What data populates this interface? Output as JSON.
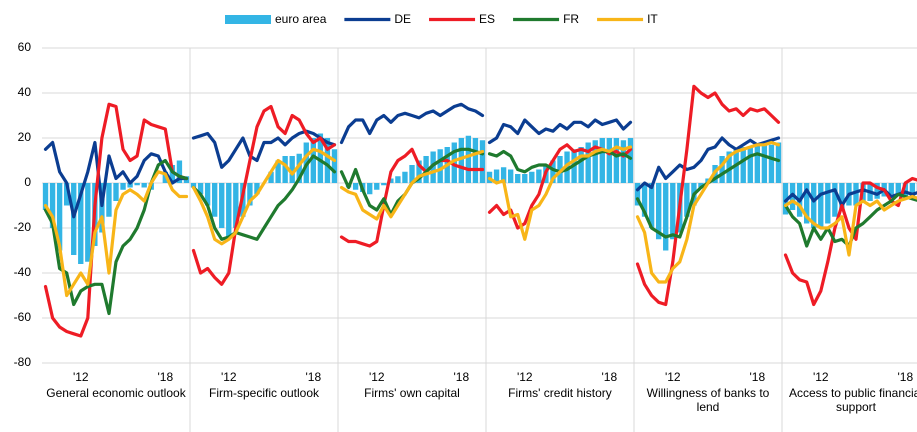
{
  "chart_data": {
    "type": "bar_line_panels",
    "ylim": [
      -80,
      60
    ],
    "yticks": [
      -80,
      -60,
      -40,
      -20,
      0,
      20,
      40,
      60
    ],
    "grid": true,
    "categories": [
      null,
      null,
      null,
      null,
      null,
      "'12",
      null,
      null,
      null,
      null,
      null,
      null,
      null,
      null,
      null,
      null,
      null,
      "'18",
      null,
      null,
      null
    ],
    "series": [
      {
        "name": "euro area",
        "color": "#33b5e5",
        "kind": "bar"
      },
      {
        "name": "DE",
        "color": "#0b3d91",
        "kind": "line"
      },
      {
        "name": "ES",
        "color": "#ee1c25",
        "kind": "line"
      },
      {
        "name": "FR",
        "color": "#1f7a2e",
        "kind": "line"
      },
      {
        "name": "IT",
        "color": "#f8b518",
        "kind": "line"
      }
    ],
    "panels": [
      {
        "label": "General economic outlook",
        "values": [
          [
            -12,
            -20,
            -30,
            -10,
            -32,
            -36,
            -35,
            -28,
            -22,
            -15,
            -8,
            -3,
            -2,
            -1,
            -2,
            -3,
            0,
            5,
            8,
            10,
            3
          ],
          [
            15,
            18,
            5,
            0,
            -15,
            -5,
            5,
            18,
            -10,
            12,
            2,
            5,
            0,
            3,
            10,
            13,
            12,
            5,
            0,
            2,
            2
          ],
          [
            -46,
            -60,
            -64,
            -66,
            -67,
            -68,
            -60,
            -10,
            20,
            35,
            34,
            15,
            10,
            12,
            28,
            26,
            25,
            24,
            5,
            3,
            2
          ],
          [
            -12,
            -18,
            -38,
            -40,
            -54,
            -48,
            -46,
            -45,
            -45,
            -58,
            -35,
            -28,
            -25,
            -20,
            -12,
            0,
            8,
            10,
            5,
            3,
            2
          ],
          [
            -10,
            -15,
            -28,
            -50,
            -45,
            -40,
            -45,
            -22,
            -15,
            -40,
            -12,
            -5,
            -3,
            -5,
            -8,
            0,
            5,
            4,
            -3,
            -6,
            -6
          ]
        ]
      },
      {
        "label": "Firm-specific outlook",
        "values": [
          [
            -2,
            -5,
            -10,
            -15,
            -20,
            -25,
            -20,
            -15,
            -10,
            -5,
            0,
            5,
            10,
            12,
            12,
            13,
            18,
            20,
            22,
            20,
            15
          ],
          [
            20,
            21,
            22,
            18,
            7,
            10,
            15,
            20,
            12,
            10,
            18,
            18,
            20,
            17,
            20,
            22,
            23,
            22,
            20,
            18,
            17
          ],
          [
            -30,
            -40,
            -38,
            -42,
            -45,
            -40,
            -20,
            -5,
            10,
            25,
            32,
            34,
            25,
            22,
            30,
            28,
            22,
            18,
            20,
            15,
            17
          ],
          [
            -2,
            -5,
            -10,
            -20,
            -25,
            -24,
            -22,
            -23,
            -24,
            -25,
            -20,
            -15,
            -10,
            -7,
            -3,
            2,
            8,
            12,
            10,
            8,
            5
          ],
          [
            -2,
            -8,
            -15,
            -25,
            -27,
            -25,
            -22,
            -15,
            -8,
            -5,
            0,
            5,
            10,
            8,
            4,
            8,
            12,
            15,
            14,
            12,
            10
          ]
        ]
      },
      {
        "label": "Firms' own capital",
        "values": [
          [
            0,
            -2,
            -3,
            -4,
            -5,
            -3,
            -1,
            2,
            3,
            5,
            8,
            10,
            12,
            14,
            15,
            16,
            18,
            20,
            21,
            20,
            19
          ],
          [
            18,
            25,
            28,
            28,
            22,
            28,
            30,
            27,
            30,
            31,
            30,
            29,
            31,
            32,
            30,
            32,
            34,
            35,
            33,
            32,
            30
          ],
          [
            -24,
            -26,
            -26,
            -27,
            -28,
            -26,
            -10,
            5,
            10,
            12,
            15,
            8,
            5,
            8,
            10,
            10,
            8,
            7,
            6,
            6,
            6
          ],
          [
            5,
            -2,
            6,
            -3,
            -10,
            -12,
            -7,
            -14,
            -8,
            -5,
            0,
            2,
            5,
            8,
            10,
            12,
            14,
            15,
            15,
            14,
            13
          ],
          [
            -2,
            -4,
            -5,
            -12,
            -14,
            -16,
            -10,
            -15,
            -10,
            -5,
            0,
            3,
            4,
            5,
            6,
            8,
            10,
            11,
            12,
            13,
            14
          ]
        ]
      },
      {
        "label": "Firms' credit history",
        "values": [
          [
            5,
            6,
            7,
            6,
            4,
            4,
            5,
            6,
            8,
            10,
            12,
            14,
            15,
            16,
            18,
            19,
            20,
            20,
            20,
            19,
            20
          ],
          [
            18,
            20,
            26,
            25,
            22,
            28,
            25,
            22,
            24,
            23,
            26,
            24,
            27,
            27,
            25,
            28,
            26,
            27,
            28,
            24,
            27
          ],
          [
            -13,
            -10,
            -14,
            -12,
            -20,
            -18,
            -10,
            -5,
            5,
            10,
            15,
            17,
            14,
            15,
            14,
            16,
            15,
            13,
            14,
            12,
            15
          ],
          [
            13,
            12,
            14,
            12,
            6,
            5,
            7,
            8,
            8,
            6,
            5,
            6,
            8,
            10,
            12,
            13,
            14,
            14,
            12,
            13,
            11
          ],
          [
            2,
            0,
            1,
            -15,
            -14,
            -25,
            -12,
            -10,
            -5,
            2,
            5,
            8,
            10,
            12,
            12,
            14,
            15,
            14,
            16,
            15,
            16
          ]
        ]
      },
      {
        "label": "Willingness of banks to lend",
        "values": [
          [
            -10,
            -15,
            -20,
            -25,
            -30,
            -25,
            -22,
            -15,
            -10,
            -2,
            2,
            8,
            12,
            14,
            15,
            16,
            16,
            17,
            17,
            17,
            18
          ],
          [
            -3,
            0,
            -2,
            7,
            2,
            5,
            8,
            6,
            7,
            10,
            15,
            16,
            20,
            17,
            15,
            17,
            19,
            17,
            18,
            19,
            20
          ],
          [
            -36,
            -45,
            -50,
            -53,
            -54,
            -35,
            -10,
            15,
            43,
            40,
            38,
            40,
            35,
            32,
            33,
            30,
            33,
            32,
            33,
            30,
            27
          ],
          [
            -7,
            -13,
            -20,
            -22,
            -24,
            -23,
            -24,
            -15,
            -5,
            -2,
            0,
            2,
            4,
            6,
            8,
            10,
            12,
            13,
            12,
            11,
            10
          ],
          [
            -15,
            -22,
            -40,
            -44,
            -44,
            -38,
            -35,
            -25,
            -10,
            -5,
            0,
            5,
            8,
            12,
            14,
            15,
            16,
            17,
            17,
            18,
            17
          ]
        ]
      },
      {
        "label": "Access to public financial support",
        "values": [
          [
            -14,
            -12,
            -15,
            -18,
            -20,
            -20,
            -18,
            -15,
            -12,
            -10,
            -10,
            -8,
            -8,
            -7,
            -6,
            -5,
            -5,
            -6,
            -6,
            -5,
            -8
          ],
          [
            -8,
            -5,
            -8,
            -3,
            -8,
            -5,
            -4,
            -3,
            -10,
            -5,
            -4,
            -3,
            -4,
            -5,
            -3,
            -6,
            -5,
            -4,
            -5,
            -4,
            -4
          ],
          [
            -32,
            -40,
            -43,
            -44,
            -54,
            -48,
            -35,
            -20,
            -10,
            -20,
            -25,
            0,
            0,
            -2,
            -3,
            -8,
            -10,
            0,
            2,
            1,
            -8
          ],
          [
            -10,
            -15,
            -18,
            -28,
            -20,
            -25,
            -20,
            -26,
            -25,
            -28,
            -20,
            -18,
            -15,
            -12,
            -10,
            -8,
            -5,
            -6,
            -7,
            -8,
            -10
          ],
          [
            -10,
            -8,
            -10,
            -15,
            -18,
            -20,
            -20,
            -18,
            -15,
            -32,
            -10,
            -8,
            -10,
            -8,
            -12,
            -10,
            -8,
            -7,
            -6,
            -7,
            -9
          ]
        ]
      }
    ]
  }
}
